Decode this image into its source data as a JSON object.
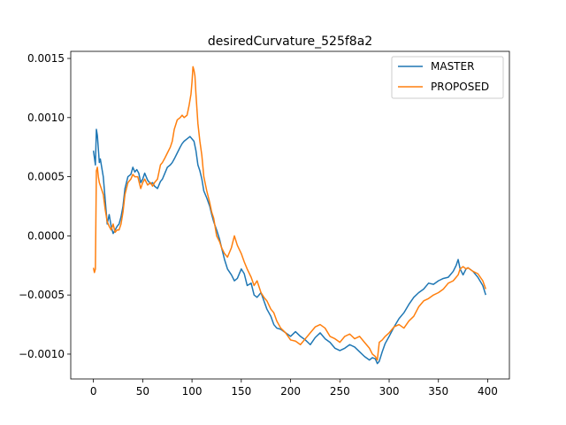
{
  "chart_data": {
    "type": "line",
    "title": "desiredCurvature_525f8a2",
    "xlabel": "",
    "ylabel": "",
    "xlim": [
      -23,
      422
    ],
    "ylim": [
      -0.00121,
      0.00156
    ],
    "xticks": [
      0,
      50,
      100,
      150,
      200,
      250,
      300,
      350,
      400
    ],
    "xtick_labels": [
      "0",
      "50",
      "100",
      "150",
      "200",
      "250",
      "300",
      "350",
      "400"
    ],
    "yticks": [
      -0.001,
      -0.0005,
      0.0,
      0.0005,
      0.001,
      0.0015
    ],
    "ytick_labels": [
      "−0.0010",
      "−0.0005",
      "0.0000",
      "0.0005",
      "0.0010",
      "0.0015"
    ],
    "grid": false,
    "legend": {
      "placement": "top-right"
    },
    "series": [
      {
        "name": "MASTER",
        "color": "#1f77b4",
        "x": [
          0,
          2,
          3,
          4,
          6,
          7,
          8,
          10,
          12,
          14,
          16,
          18,
          20,
          22,
          24,
          26,
          28,
          30,
          32,
          35,
          38,
          40,
          42,
          44,
          46,
          48,
          50,
          52,
          55,
          58,
          60,
          62,
          65,
          68,
          70,
          72,
          75,
          78,
          80,
          82,
          85,
          88,
          90,
          92,
          95,
          98,
          100,
          102,
          104,
          106,
          108,
          110,
          112,
          115,
          118,
          120,
          122,
          125,
          128,
          130,
          133,
          136,
          140,
          143,
          146,
          150,
          153,
          156,
          160,
          163,
          166,
          170,
          173,
          176,
          180,
          183,
          186,
          190,
          195,
          200,
          205,
          210,
          215,
          220,
          225,
          230,
          235,
          240,
          245,
          250,
          255,
          260,
          265,
          270,
          275,
          280,
          283,
          286,
          288,
          290,
          293,
          296,
          300,
          305,
          310,
          315,
          320,
          325,
          330,
          335,
          340,
          345,
          350,
          355,
          360,
          365,
          368,
          370,
          372,
          375,
          378,
          380,
          385,
          390,
          395,
          398
        ],
        "y": [
          0.00072,
          0.0006,
          0.0009,
          0.00085,
          0.00062,
          0.00065,
          0.0006,
          0.0005,
          0.0003,
          0.0001,
          0.00018,
          8e-05,
          2e-05,
          5e-05,
          8e-05,
          0.0001,
          0.00016,
          0.00025,
          0.0004,
          0.0005,
          0.00052,
          0.00058,
          0.00054,
          0.00056,
          0.00053,
          0.00045,
          0.00048,
          0.00053,
          0.00047,
          0.00044,
          0.00045,
          0.00042,
          0.0004,
          0.00046,
          0.00048,
          0.00052,
          0.00058,
          0.0006,
          0.00062,
          0.00065,
          0.0007,
          0.00075,
          0.00078,
          0.0008,
          0.00082,
          0.00084,
          0.00082,
          0.0008,
          0.00072,
          0.0006,
          0.00055,
          0.00048,
          0.00038,
          0.00032,
          0.00025,
          0.00018,
          0.00012,
          5e-05,
          -3e-05,
          -0.0001,
          -0.0002,
          -0.00028,
          -0.00033,
          -0.00038,
          -0.00036,
          -0.00028,
          -0.00032,
          -0.00042,
          -0.0004,
          -0.0005,
          -0.00052,
          -0.00048,
          -0.00055,
          -0.00062,
          -0.00068,
          -0.00075,
          -0.00078,
          -0.00079,
          -0.00082,
          -0.00085,
          -0.00081,
          -0.00085,
          -0.00088,
          -0.00092,
          -0.00086,
          -0.00082,
          -0.00087,
          -0.0009,
          -0.00095,
          -0.00097,
          -0.00095,
          -0.00092,
          -0.00094,
          -0.00098,
          -0.00102,
          -0.00105,
          -0.00103,
          -0.00104,
          -0.00108,
          -0.00106,
          -0.00098,
          -0.00091,
          -0.00085,
          -0.00077,
          -0.0007,
          -0.00065,
          -0.00058,
          -0.00052,
          -0.00048,
          -0.00045,
          -0.0004,
          -0.00041,
          -0.00038,
          -0.00036,
          -0.00035,
          -0.0003,
          -0.00025,
          -0.0002,
          -0.00028,
          -0.00033,
          -0.00028,
          -0.00027,
          -0.0003,
          -0.00035,
          -0.00042,
          -0.0005
        ]
      },
      {
        "name": "PROPOSED",
        "color": "#ff7f0e",
        "x": [
          0,
          1,
          2,
          3,
          4,
          5,
          6,
          8,
          10,
          12,
          14,
          16,
          18,
          20,
          22,
          24,
          26,
          28,
          30,
          32,
          35,
          38,
          40,
          42,
          45,
          48,
          50,
          52,
          55,
          58,
          60,
          62,
          65,
          68,
          70,
          72,
          75,
          78,
          80,
          82,
          85,
          88,
          90,
          92,
          95,
          97,
          99,
          100,
          101,
          102,
          103,
          104,
          106,
          108,
          110,
          112,
          115,
          118,
          120,
          122,
          125,
          128,
          130,
          133,
          136,
          140,
          143,
          146,
          150,
          153,
          156,
          160,
          163,
          166,
          170,
          173,
          176,
          180,
          183,
          186,
          190,
          195,
          200,
          205,
          210,
          215,
          220,
          225,
          230,
          235,
          240,
          245,
          250,
          255,
          260,
          265,
          270,
          275,
          280,
          283,
          286,
          288,
          290,
          293,
          296,
          300,
          305,
          310,
          315,
          320,
          325,
          330,
          335,
          340,
          345,
          350,
          355,
          360,
          365,
          368,
          370,
          372,
          375,
          378,
          380,
          385,
          390,
          395,
          398
        ],
        "y": [
          -0.00027,
          -0.00031,
          -0.00028,
          0.00055,
          0.00058,
          0.0005,
          0.00045,
          0.0004,
          0.00035,
          0.00022,
          0.00012,
          8e-05,
          5e-05,
          0.0001,
          3e-05,
          5e-05,
          5e-05,
          0.0001,
          0.0002,
          0.00035,
          0.00045,
          0.00048,
          0.00052,
          0.0005,
          0.0005,
          0.0004,
          0.00045,
          0.00048,
          0.00043,
          0.00045,
          0.00042,
          0.00045,
          0.00048,
          0.0006,
          0.00062,
          0.00065,
          0.0007,
          0.00075,
          0.0008,
          0.0009,
          0.00098,
          0.001,
          0.00102,
          0.001,
          0.00102,
          0.0011,
          0.0012,
          0.0013,
          0.00143,
          0.0014,
          0.00135,
          0.0012,
          0.00095,
          0.0008,
          0.00068,
          0.0005,
          0.00038,
          0.00028,
          0.0002,
          0.00015,
          0.0,
          -5e-05,
          -0.0001,
          -0.00015,
          -0.00018,
          -0.0001,
          0.0,
          -8e-05,
          -0.00015,
          -0.00022,
          -0.00028,
          -0.00035,
          -0.00042,
          -0.00038,
          -0.00048,
          -0.00052,
          -0.00055,
          -0.00062,
          -0.00065,
          -0.00072,
          -0.00078,
          -0.00082,
          -0.00088,
          -0.00089,
          -0.00092,
          -0.00087,
          -0.00082,
          -0.00077,
          -0.00075,
          -0.00078,
          -0.00085,
          -0.00087,
          -0.0009,
          -0.00085,
          -0.00083,
          -0.00087,
          -0.00085,
          -0.0009,
          -0.00095,
          -0.001,
          -0.00102,
          -0.00105,
          -0.0009,
          -0.00088,
          -0.00085,
          -0.00082,
          -0.00077,
          -0.00075,
          -0.00078,
          -0.00072,
          -0.00068,
          -0.0006,
          -0.00055,
          -0.00053,
          -0.0005,
          -0.00048,
          -0.00045,
          -0.0004,
          -0.00038,
          -0.00035,
          -0.00033,
          -0.00028,
          -0.00026,
          -0.00028,
          -0.00027,
          -0.0003,
          -0.00032,
          -0.00038,
          -0.00045
        ]
      }
    ]
  }
}
